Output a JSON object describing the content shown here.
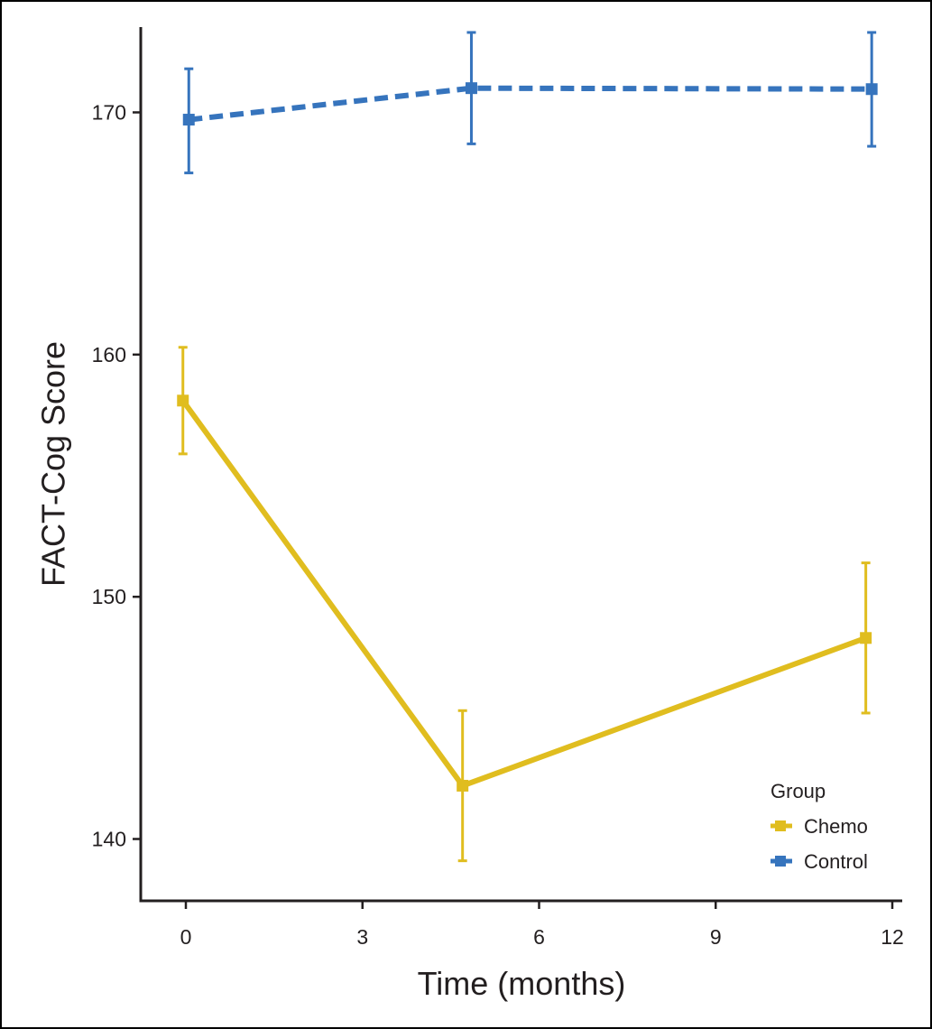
{
  "chart_data": {
    "type": "line",
    "title": "",
    "xlabel": "Time (months)",
    "ylabel": "FACT-Cog Score",
    "xlim": [
      -0.75,
      12.2
    ],
    "ylim": [
      137.3,
      173.7
    ],
    "x_ticks": [
      0,
      3,
      6,
      9,
      12
    ],
    "y_ticks": [
      140,
      150,
      160,
      170
    ],
    "x_tick_labels": [
      "0",
      "3",
      "6",
      "9",
      "12"
    ],
    "y_tick_labels": [
      "140",
      "150",
      "160",
      "170"
    ],
    "grid": false,
    "legend": {
      "title": "Group",
      "position": "bottom-right"
    },
    "series": [
      {
        "name": "Chemo",
        "color": "#e0bd1f",
        "line_style": "solid",
        "marker": "square",
        "x": [
          -0.05,
          4.7,
          11.55
        ],
        "y": [
          158.1,
          142.2,
          148.3
        ],
        "error_low": [
          155.9,
          139.1,
          145.2
        ],
        "error_high": [
          160.3,
          145.3,
          151.4
        ]
      },
      {
        "name": "Control",
        "color": "#3674bd",
        "line_style": "dashed",
        "marker": "square",
        "x": [
          0.05,
          4.85,
          11.65
        ],
        "y": [
          169.7,
          171.0,
          170.96
        ],
        "error_low": [
          167.5,
          168.7,
          168.6
        ],
        "error_high": [
          171.8,
          173.3,
          173.3
        ]
      }
    ]
  }
}
